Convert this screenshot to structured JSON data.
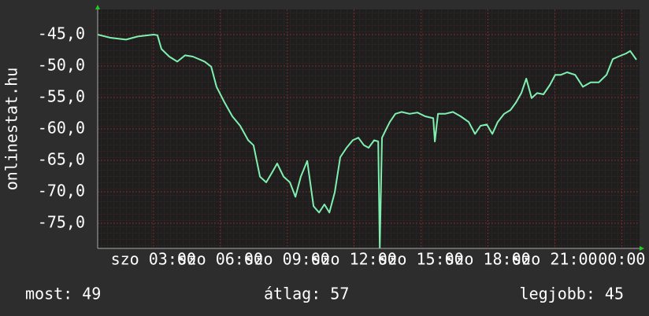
{
  "chart_data": {
    "type": "line",
    "ylabel": "onlinestat.hu",
    "x": [
      0.5,
      1.07,
      1.77,
      2.3,
      3.01,
      3.18,
      3.36,
      3.71,
      4.07,
      4.42,
      4.77,
      5.3,
      5.59,
      5.83,
      6.19,
      6.54,
      6.89,
      7.25,
      7.49,
      7.78,
      8.06,
      8.31,
      8.55,
      8.84,
      9.12,
      9.37,
      9.61,
      9.9,
      10.18,
      10.43,
      10.67,
      10.89,
      11.13,
      11.38,
      11.66,
      11.94,
      12.19,
      12.44,
      12.65,
      12.9,
      13.08,
      13.15,
      13.25,
      13.43,
      13.6,
      13.85,
      14.13,
      14.49,
      14.84,
      15.19,
      15.55,
      15.62,
      15.76,
      16.08,
      16.43,
      16.78,
      17.14,
      17.42,
      17.67,
      17.95,
      18.2,
      18.44,
      18.73,
      19.01,
      19.26,
      19.5,
      19.72,
      19.96,
      20.21,
      20.49,
      20.78,
      21.02,
      21.27,
      21.55,
      21.91,
      22.26,
      22.61,
      22.97,
      23.32,
      23.6,
      23.85,
      24.2,
      24.38,
      24.66
    ],
    "series": [
      {
        "name": "onlinestat.hu",
        "color": "#7ff0b0",
        "values": [
          -45,
          -45.5,
          -45.8,
          -45.3,
          -45,
          -45.1,
          -47.3,
          -48.5,
          -49.3,
          -48.3,
          -48.5,
          -49.3,
          -50.1,
          -53.3,
          -55.8,
          -58,
          -59.5,
          -61.8,
          -62.6,
          -67.6,
          -68.5,
          -67,
          -65.5,
          -67.6,
          -68.5,
          -70.8,
          -67.6,
          -65.1,
          -72.3,
          -73.3,
          -72,
          -73.3,
          -70.1,
          -64.5,
          -63,
          -61.8,
          -61.4,
          -62.6,
          -63,
          -61.8,
          -62,
          -78.9,
          -61.4,
          -60.1,
          -58.9,
          -57.6,
          -57.3,
          -57.6,
          -57.4,
          -58,
          -58.3,
          -62,
          -57.6,
          -57.6,
          -57.3,
          -58,
          -58.9,
          -60.8,
          -59.5,
          -59.3,
          -60.8,
          -58.9,
          -57.6,
          -57,
          -55.8,
          -54.3,
          -52,
          -55.1,
          -54.3,
          -54.5,
          -53,
          -51.4,
          -51.4,
          -51,
          -51.4,
          -53.3,
          -52.6,
          -52.6,
          -51.4,
          -48.9,
          -48.5,
          -48,
          -47.6,
          -49
        ]
      }
    ],
    "xlim": [
      0.5,
      24.8
    ],
    "ylim": [
      -79,
      -41
    ],
    "xticks": [
      {
        "value": 3,
        "label": "szo 03:00"
      },
      {
        "value": 6,
        "label": "szo 06:00"
      },
      {
        "value": 9,
        "label": "szo 09:00"
      },
      {
        "value": 12,
        "label": "szo 12:00"
      },
      {
        "value": 15,
        "label": "szo 15:00"
      },
      {
        "value": 18,
        "label": "szo 18:00"
      },
      {
        "value": 21,
        "label": "szo 21:00"
      },
      {
        "value": 24,
        "label": "00:00"
      }
    ],
    "yticks": [
      {
        "value": -45,
        "label": "-45,0"
      },
      {
        "value": -50,
        "label": "-50,0"
      },
      {
        "value": -55,
        "label": "-55,0"
      },
      {
        "value": -60,
        "label": "-60,0"
      },
      {
        "value": -65,
        "label": "-65,0"
      },
      {
        "value": -70,
        "label": "-70,0"
      },
      {
        "value": -75,
        "label": "-75,0"
      }
    ],
    "grid": true,
    "footer": [
      "most: 49",
      "átlag: 57",
      "legjobb: 45"
    ]
  }
}
